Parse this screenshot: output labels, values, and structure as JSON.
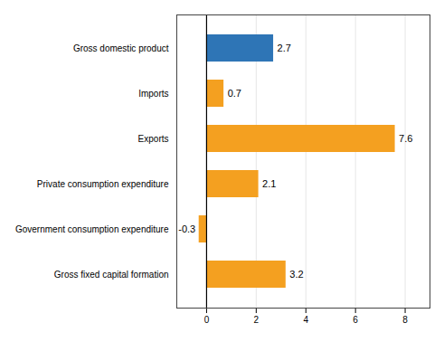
{
  "chart_data": {
    "type": "bar",
    "orientation": "horizontal",
    "categories": [
      "Gross fixed capital formation",
      "Government consumption expenditure",
      "Private consumption expenditure",
      "Exports",
      "Imports",
      "Gross domestic product"
    ],
    "values": [
      3.2,
      -0.3,
      2.1,
      7.6,
      0.7,
      2.7
    ],
    "colors": [
      "#f4a020",
      "#f4a020",
      "#f4a020",
      "#f4a020",
      "#f4a020",
      "#2e75b6"
    ],
    "xlim": [
      -1.2,
      9.0
    ],
    "xticks": [
      0,
      2,
      4,
      6,
      8
    ],
    "grid": true,
    "data_labels": true
  }
}
